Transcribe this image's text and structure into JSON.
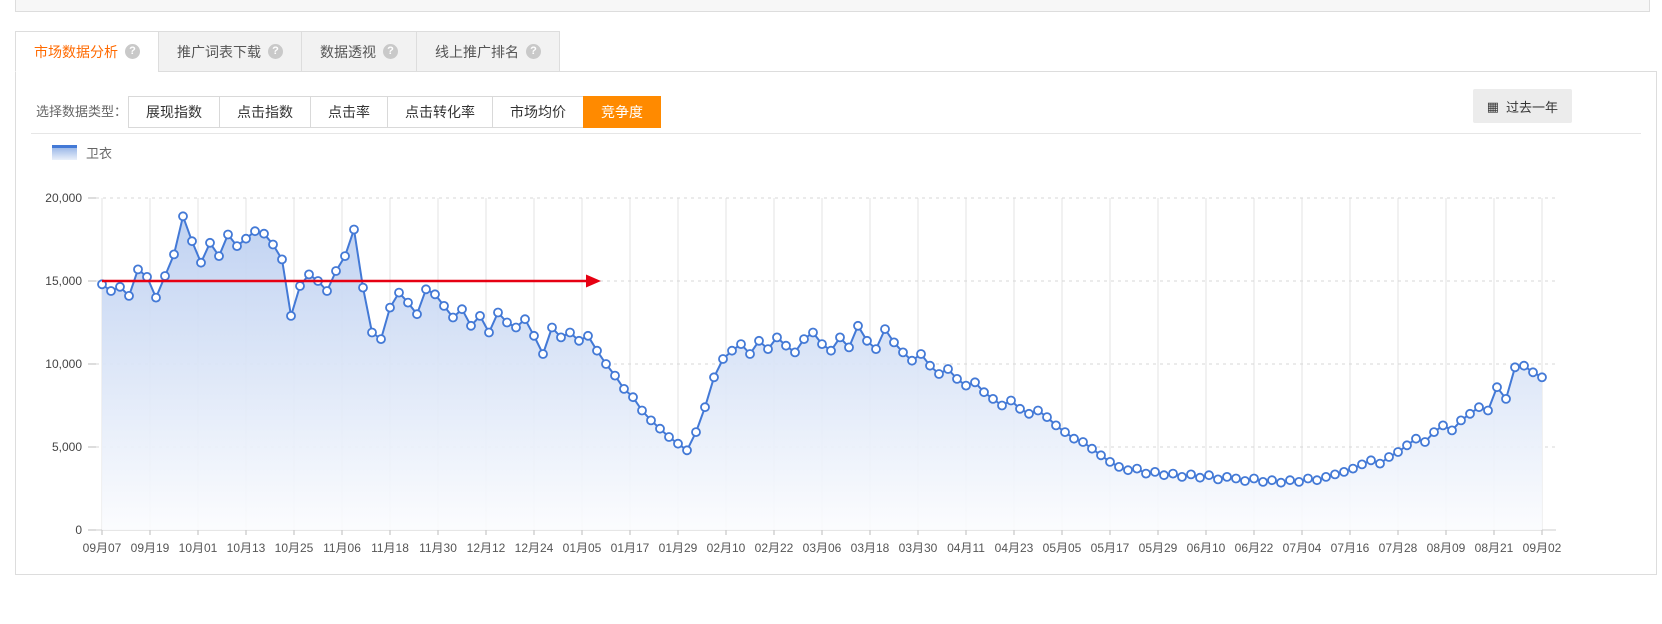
{
  "tabs": [
    {
      "name": "market-data-analysis",
      "label": "市场数据分析",
      "active": true,
      "help": true
    },
    {
      "name": "promo-wordlist-download",
      "label": "推广词表下载",
      "active": false,
      "help": true
    },
    {
      "name": "data-perspective",
      "label": "数据透视",
      "active": false,
      "help": true
    },
    {
      "name": "online-promo-ranking",
      "label": "线上推广排名",
      "active": false,
      "help": true
    }
  ],
  "toolbar": {
    "label": "选择数据类型：",
    "type_buttons": [
      {
        "name": "impression-index",
        "label": "展现指数",
        "active": false
      },
      {
        "name": "click-index",
        "label": "点击指数",
        "active": false
      },
      {
        "name": "click-rate",
        "label": "点击率",
        "active": false
      },
      {
        "name": "click-conversion-rate",
        "label": "点击转化率",
        "active": false
      },
      {
        "name": "market-avg-price",
        "label": "市场均价",
        "active": false
      },
      {
        "name": "competition",
        "label": "竞争度",
        "active": true
      }
    ],
    "range_button": {
      "label": "过去一年",
      "icon": "calendar-icon"
    }
  },
  "legend": {
    "label": "卫衣"
  },
  "chart_data": {
    "type": "line",
    "title": "",
    "xlabel": "",
    "ylabel": "",
    "ylim": [
      0,
      20000
    ],
    "y_ticks": [
      0,
      5000,
      10000,
      15000,
      20000
    ],
    "y_tick_labels": [
      "0",
      "5,000",
      "10,000",
      "15,000",
      "20,000"
    ],
    "grid": true,
    "legend_position": "top-left",
    "x_tick_labels": [
      "09月07",
      "09月19",
      "10月01",
      "10月13",
      "10月25",
      "11月06",
      "11月18",
      "11月30",
      "12月12",
      "12月24",
      "01月05",
      "01月17",
      "01月29",
      "02月10",
      "02月22",
      "03月06",
      "03月18",
      "03月30",
      "04月11",
      "04月23",
      "05月05",
      "05月17",
      "05月29",
      "06月10",
      "06月22",
      "07月04",
      "07月16",
      "07月28",
      "08月09",
      "08月21",
      "09月02"
    ],
    "series": [
      {
        "name": "卫衣",
        "color": "#4379d6",
        "marker": "circle-white-fill",
        "values": [
          14800,
          14400,
          14650,
          14100,
          15700,
          15250,
          14000,
          15300,
          16600,
          18900,
          17400,
          16100,
          17300,
          16500,
          17800,
          17100,
          17550,
          18000,
          17850,
          17200,
          16300,
          12900,
          14700,
          15400,
          15000,
          14400,
          15600,
          16500,
          18100,
          14600,
          11900,
          11500,
          13400,
          14300,
          13700,
          13000,
          14500,
          14200,
          13500,
          12800,
          13300,
          12300,
          12900,
          11900,
          13100,
          12500,
          12200,
          12700,
          11700,
          10600,
          12200,
          11600,
          11900,
          11400,
          11700,
          10800,
          10000,
          9300,
          8500,
          8000,
          7200,
          6600,
          6100,
          5600,
          5200,
          4800,
          5900,
          7400,
          9200,
          10300,
          10800,
          11200,
          10600,
          11400,
          10900,
          11600,
          11100,
          10700,
          11500,
          11900,
          11200,
          10800,
          11600,
          11000,
          12300,
          11400,
          10900,
          12100,
          11300,
          10700,
          10200,
          10600,
          9900,
          9400,
          9700,
          9100,
          8700,
          8900,
          8300,
          7900,
          7500,
          7800,
          7300,
          7000,
          7200,
          6800,
          6300,
          5900,
          5500,
          5300,
          4900,
          4500,
          4100,
          3800,
          3600,
          3700,
          3400,
          3500,
          3300,
          3400,
          3200,
          3350,
          3150,
          3300,
          3050,
          3200,
          3100,
          2950,
          3100,
          2900,
          3000,
          2850,
          3000,
          2900,
          3100,
          3000,
          3200,
          3350,
          3500,
          3700,
          3950,
          4200,
          4000,
          4400,
          4700,
          5100,
          5500,
          5300,
          5900,
          6300,
          6000,
          6600,
          7000,
          7400,
          7200,
          8600,
          7900,
          9800,
          9900,
          9500,
          9200
        ]
      }
    ],
    "annotation": {
      "type": "horizontal-arrow",
      "value": 15000,
      "from_tick": "09月07",
      "to_tick": "01月05",
      "color": "#e60012"
    }
  }
}
